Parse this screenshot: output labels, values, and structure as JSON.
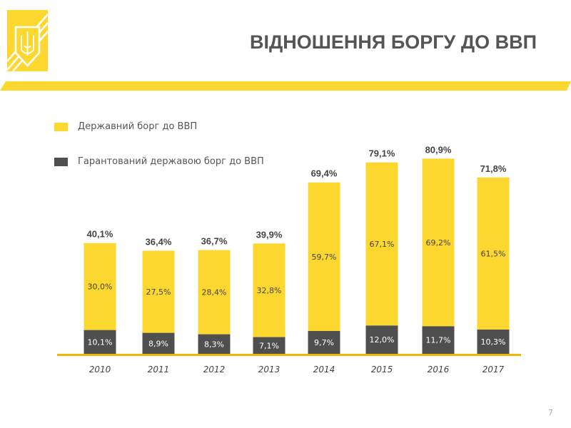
{
  "title": "ВІДНОШЕННЯ БОРГУ ДО ВВП",
  "page_number": "7",
  "colors": {
    "yellow": "#fcd72f",
    "dark": "#4f4f4f",
    "baseline": "#f2b705",
    "text": "#555555"
  },
  "chart_data": {
    "type": "bar",
    "stacked": true,
    "categories": [
      "2010",
      "2011",
      "2012",
      "2013",
      "2014",
      "2015",
      "2016",
      "2017"
    ],
    "series": [
      {
        "name": "Гарантований державою борг до ВВП",
        "color": "#4f4f4f",
        "values": [
          10.1,
          8.9,
          8.3,
          7.1,
          9.7,
          12.0,
          11.7,
          10.3
        ],
        "labels": [
          "10,1%",
          "8,9%",
          "8,3%",
          "7,1%",
          "9,7%",
          "12,0%",
          "11,7%",
          "10,3%"
        ]
      },
      {
        "name": "Державний борг до ВВП",
        "color": "#fcd72f",
        "values": [
          30.0,
          27.5,
          28.4,
          32.8,
          59.7,
          67.1,
          69.2,
          61.5
        ],
        "labels": [
          "30,0%",
          "27,5%",
          "28,4%",
          "32,8%",
          "59,7%",
          "67,1%",
          "69,2%",
          "61,5%"
        ]
      }
    ],
    "totals": [
      40.1,
      36.4,
      36.7,
      39.9,
      69.4,
      79.1,
      80.9,
      71.8
    ],
    "total_labels": [
      "40,1%",
      "36,4%",
      "36,7%",
      "39,9%",
      "69,4%",
      "79,1%",
      "80,9%",
      "71,8%"
    ],
    "legend": [
      "Державний борг до ВВП",
      "Гарантований державою борг до ВВП"
    ],
    "legend_position": "top-left",
    "grid": false,
    "y_axis_visible": false
  }
}
